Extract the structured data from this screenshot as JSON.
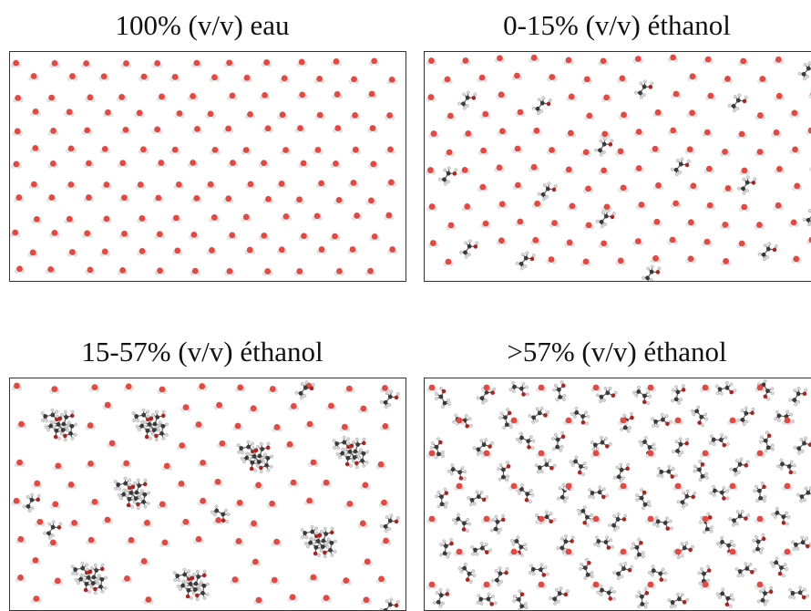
{
  "panels": [
    {
      "title": "100% (v/v) eau",
      "scene": "water"
    },
    {
      "title": "0-15% (v/v) éthanol",
      "scene": "dilute"
    },
    {
      "title": "15-57% (v/v) éthanol",
      "scene": "clusters"
    },
    {
      "title": ">57% (v/v) éthanol",
      "scene": "concentrated"
    }
  ],
  "colors": {
    "oxygen": "#e8463e",
    "hydrogen": "#e6e6e6",
    "carbon": "#3a3a3a",
    "ethanol_oxygen": "#b0231c",
    "border": "#333333"
  },
  "icons": {
    "water": "water-molecule-icon",
    "ethanol": "ethanol-molecule-icon"
  }
}
